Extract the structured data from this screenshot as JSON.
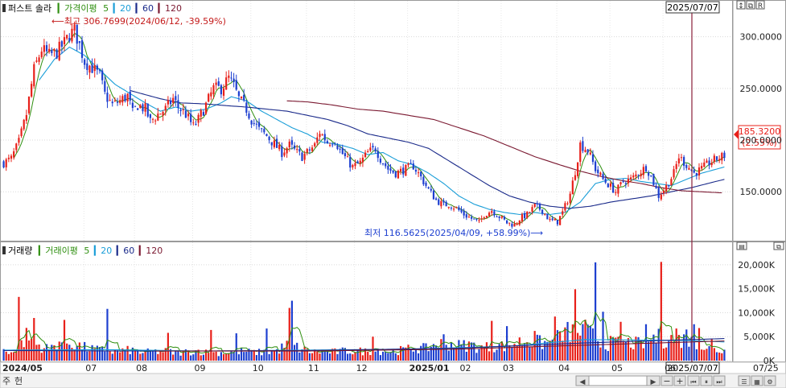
{
  "chart_data": {
    "type": "candlestick",
    "title": "퍼스트 솔라",
    "legend": {
      "price_label": "가격이평",
      "price_periods": [
        "5",
        "20",
        "60",
        "120"
      ],
      "volume_title": "거래량",
      "volume_label": "거래이평",
      "volume_periods": [
        "5",
        "20",
        "60",
        "120"
      ]
    },
    "colors": {
      "up": "#e8201a",
      "down": "#1d3fd0",
      "ma5": "#2f8f10",
      "ma20": "#1a9ed8",
      "ma60": "#1a2a8a",
      "ma120": "#7a1830",
      "marker": "#8a1e3a"
    },
    "price_axis": {
      "ylim": [
        105,
        320
      ],
      "ticks": [
        "300.0000",
        "250.0000",
        "200.0000",
        "150.0000"
      ],
      "tick_values": [
        300,
        250,
        200,
        150
      ]
    },
    "volume_axis": {
      "ylim": [
        0,
        21500
      ],
      "ticks": [
        "20,000K",
        "15,000K",
        "10,000K",
        "5,000K",
        "0K"
      ],
      "tick_values": [
        20000,
        15000,
        10000,
        5000,
        0
      ]
    },
    "x_axis": {
      "labels": [
        "2024/05",
        "07",
        "08",
        "09",
        "10",
        "11",
        "12",
        "2025/01",
        "02",
        "03",
        "04",
        "05",
        "06",
        "07/25"
      ]
    },
    "annotations": {
      "high": "최고 306.7699(2024/06/12, -39.59%)",
      "low": "최저 116.5625(2025/04/09, +58.99%)",
      "cursor_date": "2025/07/07",
      "cursor_date_bottom": "2025/07/07",
      "current_price": "185.3200",
      "current_change": "(2.55%)"
    },
    "price_anchors": [
      [
        0,
        178
      ],
      [
        3,
        182
      ],
      [
        6,
        198
      ],
      [
        9,
        225
      ],
      [
        12,
        268
      ],
      [
        15,
        288
      ],
      [
        18,
        282
      ],
      [
        21,
        285
      ],
      [
        24,
        294
      ],
      [
        26,
        302
      ],
      [
        28,
        306
      ],
      [
        30,
        292
      ],
      [
        32,
        276
      ],
      [
        35,
        270
      ],
      [
        38,
        262
      ],
      [
        40,
        244
      ],
      [
        43,
        234
      ],
      [
        46,
        238
      ],
      [
        49,
        243
      ],
      [
        51,
        226
      ],
      [
        53,
        234
      ],
      [
        56,
        230
      ],
      [
        58,
        218
      ],
      [
        61,
        225
      ],
      [
        64,
        230
      ],
      [
        67,
        240
      ],
      [
        69,
        232
      ],
      [
        72,
        225
      ],
      [
        75,
        213
      ],
      [
        77,
        220
      ],
      [
        80,
        234
      ],
      [
        83,
        250
      ],
      [
        86,
        250
      ],
      [
        89,
        260
      ],
      [
        91,
        252
      ],
      [
        93,
        240
      ],
      [
        96,
        230
      ],
      [
        98,
        220
      ],
      [
        101,
        210
      ],
      [
        104,
        204
      ],
      [
        107,
        196
      ],
      [
        110,
        188
      ],
      [
        113,
        195
      ],
      [
        115,
        190
      ],
      [
        118,
        184
      ],
      [
        120,
        188
      ],
      [
        123,
        195
      ],
      [
        125,
        208
      ],
      [
        128,
        198
      ],
      [
        131,
        200
      ],
      [
        133,
        190
      ],
      [
        136,
        180
      ],
      [
        138,
        174
      ],
      [
        141,
        178
      ],
      [
        144,
        188
      ],
      [
        147,
        192
      ],
      [
        149,
        182
      ],
      [
        152,
        172
      ],
      [
        155,
        168
      ],
      [
        157,
        170
      ],
      [
        160,
        173
      ],
      [
        162,
        175
      ],
      [
        165,
        164
      ],
      [
        168,
        152
      ],
      [
        171,
        142
      ],
      [
        174,
        137
      ],
      [
        176,
        138
      ],
      [
        179,
        134
      ],
      [
        182,
        128
      ],
      [
        185,
        124
      ],
      [
        188,
        120
      ],
      [
        190,
        128
      ],
      [
        193,
        132
      ],
      [
        196,
        126
      ],
      [
        199,
        120
      ],
      [
        202,
        118
      ],
      [
        204,
        124
      ],
      [
        207,
        128
      ],
      [
        210,
        136
      ],
      [
        213,
        132
      ],
      [
        216,
        122
      ],
      [
        219,
        121
      ],
      [
        221,
        130
      ],
      [
        224,
        148
      ],
      [
        226,
        170
      ],
      [
        228,
        196
      ],
      [
        231,
        190
      ],
      [
        234,
        172
      ],
      [
        237,
        162
      ],
      [
        240,
        155
      ],
      [
        242,
        150
      ],
      [
        245,
        160
      ],
      [
        248,
        162
      ],
      [
        251,
        168
      ],
      [
        254,
        174
      ],
      [
        256,
        165
      ],
      [
        259,
        146
      ],
      [
        262,
        155
      ],
      [
        265,
        168
      ],
      [
        267,
        184
      ],
      [
        270,
        176
      ],
      [
        273,
        168
      ],
      [
        276,
        172
      ],
      [
        279,
        178
      ],
      [
        282,
        182
      ],
      [
        285,
        185
      ]
    ],
    "volume_anchors": [
      [
        0,
        2400
      ],
      [
        5,
        1600
      ],
      [
        9,
        5000
      ],
      [
        13,
        3400
      ],
      [
        18,
        2300
      ],
      [
        22,
        4100
      ],
      [
        27,
        3600
      ],
      [
        32,
        2700
      ],
      [
        36,
        2300
      ],
      [
        41,
        2000
      ],
      [
        45,
        1900
      ],
      [
        50,
        2200
      ],
      [
        54,
        1700
      ],
      [
        59,
        1800
      ],
      [
        63,
        2000
      ],
      [
        68,
        1600
      ],
      [
        72,
        1800
      ],
      [
        77,
        2100
      ],
      [
        81,
        1600
      ],
      [
        86,
        1700
      ],
      [
        90,
        1800
      ],
      [
        95,
        1900
      ],
      [
        99,
        1700
      ],
      [
        104,
        1800
      ],
      [
        108,
        2000
      ],
      [
        113,
        3600
      ],
      [
        117,
        2500
      ],
      [
        122,
        1800
      ],
      [
        126,
        1900
      ],
      [
        131,
        1800
      ],
      [
        135,
        2000
      ],
      [
        140,
        2000
      ],
      [
        144,
        1900
      ],
      [
        149,
        2100
      ],
      [
        153,
        1900
      ],
      [
        158,
        2200
      ],
      [
        162,
        2600
      ],
      [
        167,
        2500
      ],
      [
        171,
        3500
      ],
      [
        176,
        3600
      ],
      [
        180,
        3100
      ],
      [
        185,
        3300
      ],
      [
        189,
        2600
      ],
      [
        194,
        3100
      ],
      [
        198,
        3100
      ],
      [
        203,
        3700
      ],
      [
        207,
        4200
      ],
      [
        212,
        3700
      ],
      [
        216,
        3700
      ],
      [
        221,
        5200
      ],
      [
        225,
        6300
      ],
      [
        230,
        6100
      ],
      [
        234,
        4600
      ],
      [
        239,
        3600
      ],
      [
        243,
        3600
      ],
      [
        248,
        3700
      ],
      [
        252,
        3300
      ],
      [
        257,
        4800
      ],
      [
        261,
        4500
      ],
      [
        266,
        4600
      ],
      [
        270,
        4300
      ],
      [
        275,
        3200
      ],
      [
        279,
        2600
      ],
      [
        284,
        2000
      ],
      [
        285,
        2000
      ]
    ],
    "volume_spikes": [
      [
        6,
        13300
      ],
      [
        114,
        12500
      ],
      [
        113,
        11000
      ],
      [
        41,
        10800
      ],
      [
        234,
        20500
      ],
      [
        226,
        14900
      ],
      [
        237,
        10200
      ],
      [
        260,
        20600
      ],
      [
        218,
        9200
      ],
      [
        24,
        8500
      ],
      [
        12,
        8900
      ],
      [
        65,
        5800
      ],
      [
        82,
        6400
      ],
      [
        92,
        5700
      ],
      [
        104,
        6700
      ],
      [
        146,
        5000
      ],
      [
        174,
        5500
      ],
      [
        193,
        8300
      ],
      [
        199,
        7200
      ],
      [
        210,
        6200
      ],
      [
        244,
        8100
      ],
      [
        254,
        7600
      ],
      [
        266,
        6700
      ],
      [
        270,
        6500
      ],
      [
        273,
        7600
      ],
      [
        275,
        6800
      ],
      [
        280,
        4500
      ]
    ],
    "ma_anchors": {
      "ma20": [
        [
          14,
          258
        ],
        [
          20,
          278
        ],
        [
          26,
          290
        ],
        [
          32,
          282
        ],
        [
          38,
          268
        ],
        [
          44,
          254
        ],
        [
          50,
          245
        ],
        [
          56,
          236
        ],
        [
          62,
          228
        ],
        [
          68,
          232
        ],
        [
          74,
          228
        ],
        [
          80,
          230
        ],
        [
          86,
          236
        ],
        [
          90,
          242
        ],
        [
          96,
          238
        ],
        [
          102,
          228
        ],
        [
          108,
          220
        ],
        [
          114,
          212
        ],
        [
          120,
          206
        ],
        [
          126,
          198
        ],
        [
          132,
          196
        ],
        [
          138,
          192
        ],
        [
          144,
          186
        ],
        [
          150,
          188
        ],
        [
          156,
          180
        ],
        [
          162,
          176
        ],
        [
          168,
          168
        ],
        [
          174,
          158
        ],
        [
          180,
          146
        ],
        [
          186,
          138
        ],
        [
          192,
          133
        ],
        [
          198,
          130
        ],
        [
          204,
          128
        ],
        [
          210,
          130
        ],
        [
          216,
          128
        ],
        [
          222,
          130
        ],
        [
          228,
          140
        ],
        [
          234,
          158
        ],
        [
          240,
          162
        ],
        [
          246,
          163
        ],
        [
          252,
          160
        ],
        [
          258,
          158
        ],
        [
          264,
          156
        ],
        [
          270,
          162
        ],
        [
          276,
          168
        ],
        [
          282,
          172
        ],
        [
          285,
          174
        ]
      ],
      "ma60": [
        [
          50,
          248
        ],
        [
          56,
          244
        ],
        [
          62,
          240
        ],
        [
          70,
          236
        ],
        [
          80,
          235
        ],
        [
          90,
          233
        ],
        [
          96,
          232
        ],
        [
          104,
          230
        ],
        [
          112,
          228
        ],
        [
          120,
          224
        ],
        [
          128,
          220
        ],
        [
          136,
          214
        ],
        [
          144,
          206
        ],
        [
          152,
          202
        ],
        [
          160,
          198
        ],
        [
          168,
          192
        ],
        [
          176,
          180
        ],
        [
          184,
          168
        ],
        [
          192,
          156
        ],
        [
          200,
          146
        ],
        [
          208,
          140
        ],
        [
          216,
          136
        ],
        [
          224,
          134
        ],
        [
          232,
          136
        ],
        [
          240,
          140
        ],
        [
          248,
          143
        ],
        [
          256,
          146
        ],
        [
          264,
          150
        ],
        [
          272,
          154
        ],
        [
          280,
          159
        ],
        [
          285,
          162
        ]
      ],
      "ma120": [
        [
          112,
          238
        ],
        [
          120,
          237
        ],
        [
          130,
          234
        ],
        [
          140,
          230
        ],
        [
          150,
          228
        ],
        [
          160,
          224
        ],
        [
          170,
          220
        ],
        [
          180,
          212
        ],
        [
          190,
          204
        ],
        [
          200,
          194
        ],
        [
          210,
          184
        ],
        [
          220,
          176
        ],
        [
          228,
          170
        ],
        [
          236,
          165
        ],
        [
          244,
          161
        ],
        [
          252,
          158
        ],
        [
          260,
          154
        ],
        [
          268,
          151
        ],
        [
          276,
          150
        ],
        [
          284,
          149
        ]
      ],
      "vol_ma20": [
        [
          0,
          2200
        ],
        [
          40,
          2300
        ],
        [
          80,
          2000
        ],
        [
          120,
          2200
        ],
        [
          160,
          2400
        ],
        [
          200,
          3000
        ],
        [
          230,
          4400
        ],
        [
          250,
          4300
        ],
        [
          270,
          4200
        ],
        [
          285,
          3900
        ]
      ],
      "vol_ma60": [
        [
          0,
          2100
        ],
        [
          60,
          2000
        ],
        [
          120,
          2100
        ],
        [
          180,
          2600
        ],
        [
          230,
          3700
        ],
        [
          260,
          4200
        ],
        [
          285,
          4600
        ]
      ],
      "vol_ma120": [
        [
          60,
          2000
        ],
        [
          120,
          2000
        ],
        [
          180,
          2400
        ],
        [
          240,
          3400
        ],
        [
          285,
          4100
        ]
      ]
    }
  }
}
